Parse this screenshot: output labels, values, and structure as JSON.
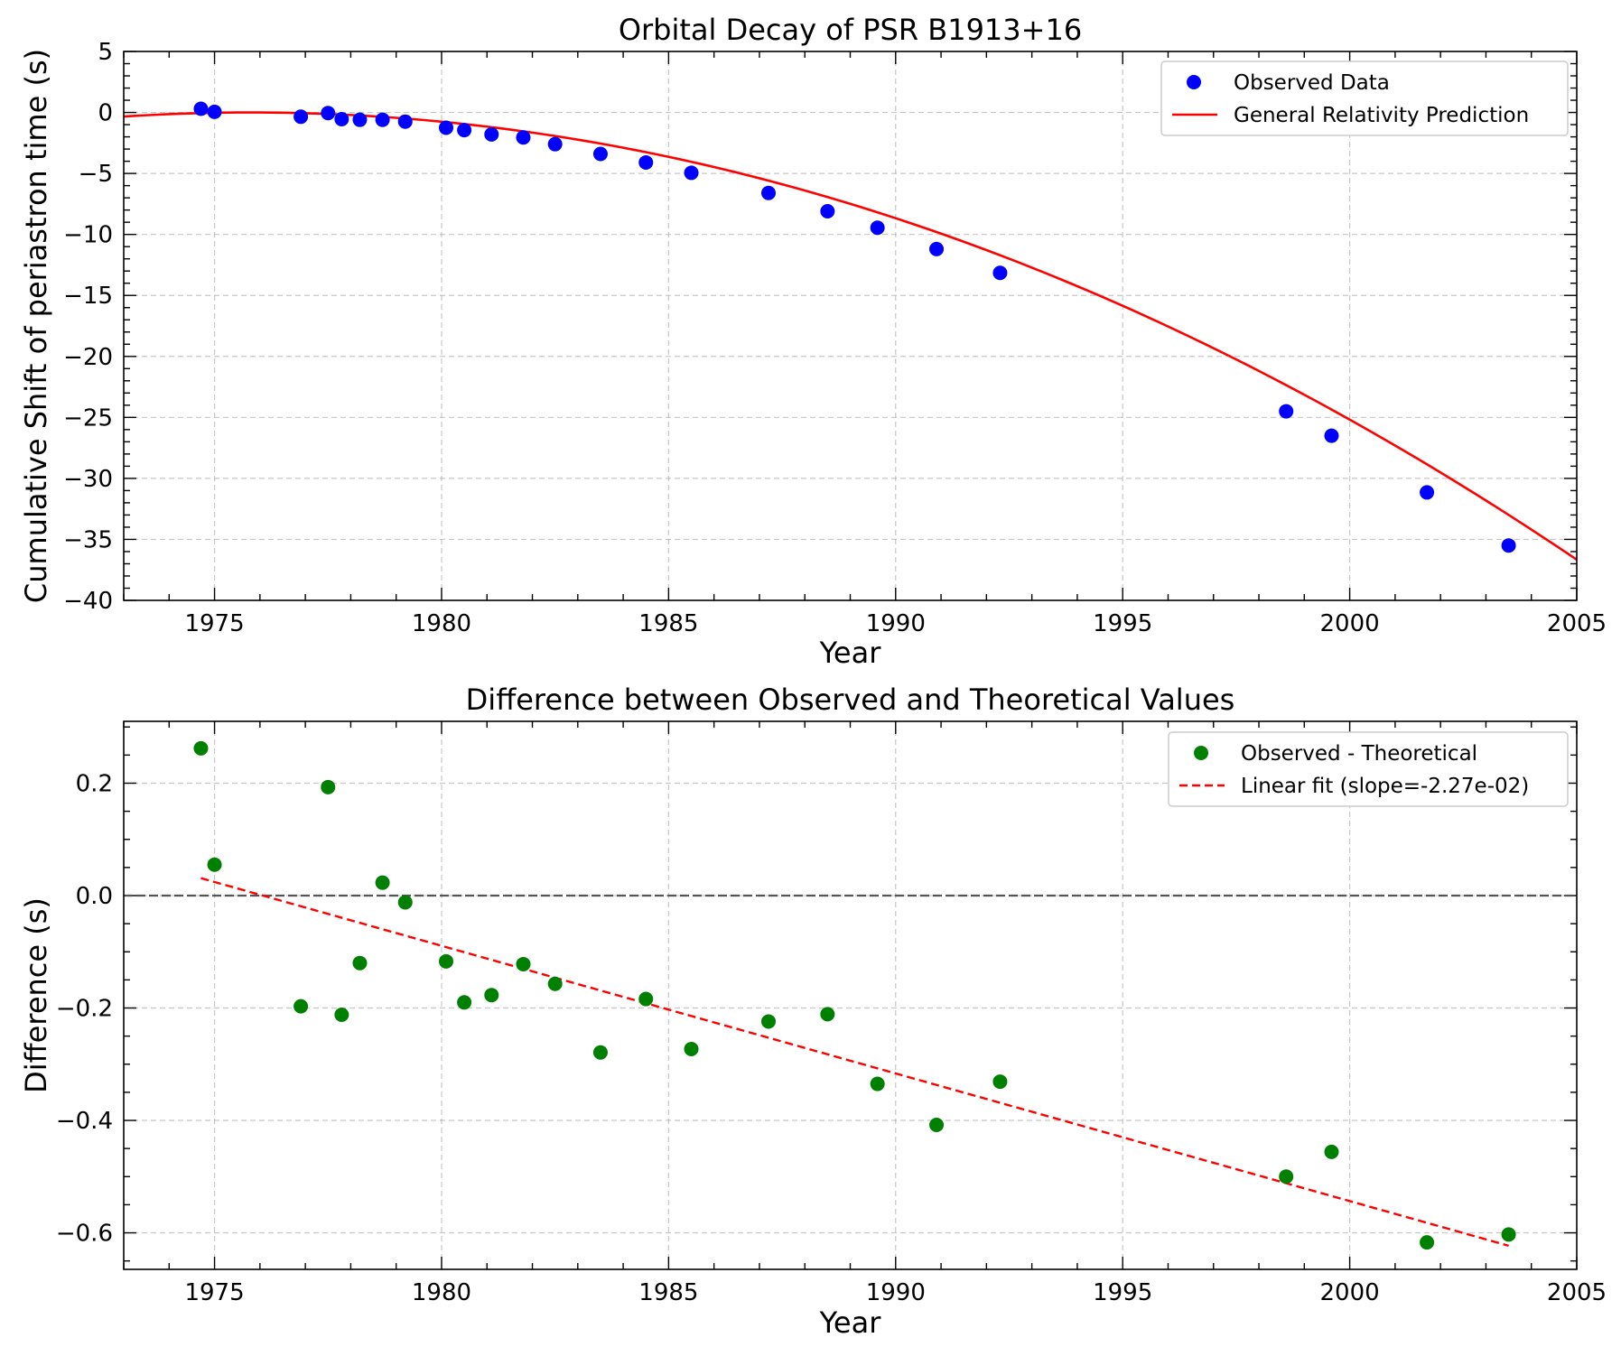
{
  "chart_data": [
    {
      "type": "scatter",
      "title": "Orbital Decay of PSR B1913+16",
      "xlabel": "Year",
      "ylabel": "Cumulative Shift of periastron time (s)",
      "xlim": [
        1973,
        2005
      ],
      "ylim": [
        -40,
        5
      ],
      "xticks": [
        1975,
        1980,
        1985,
        1990,
        1995,
        2000,
        2005
      ],
      "yticks": [
        -40,
        -35,
        -30,
        -25,
        -20,
        -15,
        -10,
        -5,
        0,
        5
      ],
      "yminor_step": 1,
      "xminor_step": 1,
      "grid": true,
      "legend_position": "top-right",
      "colors": {
        "observed": "#0000ff",
        "prediction": "#ff0000"
      },
      "series": [
        {
          "name": "Observed Data",
          "kind": "scatter",
          "x": [
            1974.7,
            1975.0,
            1976.9,
            1977.5,
            1977.8,
            1978.2,
            1978.7,
            1979.2,
            1980.1,
            1980.5,
            1981.1,
            1981.8,
            1982.5,
            1983.5,
            1984.5,
            1985.5,
            1987.2,
            1988.5,
            1989.6,
            1990.9,
            1992.3,
            1998.6,
            1999.6,
            2001.7,
            2003.5
          ],
          "y": [
            0.3,
            0.05,
            -0.35,
            -0.05,
            -0.55,
            -0.6,
            -0.6,
            -0.75,
            -1.25,
            -1.45,
            -1.8,
            -2.05,
            -2.6,
            -3.4,
            -4.1,
            -4.95,
            -6.6,
            -8.1,
            -9.45,
            -11.2,
            -13.15,
            -24.5,
            -26.5,
            -31.15,
            -35.5
          ]
        },
        {
          "name": "General Relativity Prediction",
          "kind": "line",
          "model": "quadratic",
          "coefficients": {
            "t0": 1975.8,
            "a": -0.043
          }
        }
      ]
    },
    {
      "type": "scatter",
      "title": "Difference between Observed and Theoretical Values",
      "xlabel": "Year",
      "ylabel": "Difference (s)",
      "xlim": [
        1973,
        2005
      ],
      "ylim": [
        -0.665,
        0.31
      ],
      "xticks": [
        1975,
        1980,
        1985,
        1990,
        1995,
        2000,
        2005
      ],
      "yticks": [
        -0.6,
        -0.4,
        -0.2,
        0.0,
        0.2
      ],
      "ytick_labels": [
        "−0.6",
        "−0.4",
        "−0.2",
        "0.0",
        "0.2"
      ],
      "yminor_step": 0.05,
      "xminor_step": 1,
      "zero_line": 0,
      "grid": true,
      "legend_position": "top-right",
      "colors": {
        "observed": "#008000",
        "fit": "#ff0000",
        "zero": "#555555"
      },
      "series": [
        {
          "name": "Observed - Theoretical",
          "kind": "scatter",
          "x": [
            1974.7,
            1975.0,
            1976.9,
            1977.5,
            1977.8,
            1978.2,
            1978.7,
            1979.2,
            1980.1,
            1980.5,
            1981.1,
            1981.8,
            1982.5,
            1983.5,
            1984.5,
            1985.5,
            1987.2,
            1988.5,
            1989.6,
            1990.9,
            1992.3,
            1998.6,
            1999.6,
            2001.7,
            2003.5
          ],
          "y": [
            0.262,
            0.055,
            -0.197,
            0.193,
            -0.212,
            -0.12,
            0.023,
            -0.012,
            -0.117,
            -0.19,
            -0.177,
            -0.122,
            -0.157,
            -0.279,
            -0.184,
            -0.273,
            -0.224,
            -0.211,
            -0.335,
            -0.408,
            -0.331,
            -0.5,
            -0.456,
            -0.617,
            -0.603
          ]
        },
        {
          "name": "Linear fit (slope=-2.27e-02)",
          "kind": "line",
          "x": [
            1974.7,
            2003.5
          ],
          "y": [
            0.031,
            -0.623
          ]
        }
      ]
    }
  ]
}
